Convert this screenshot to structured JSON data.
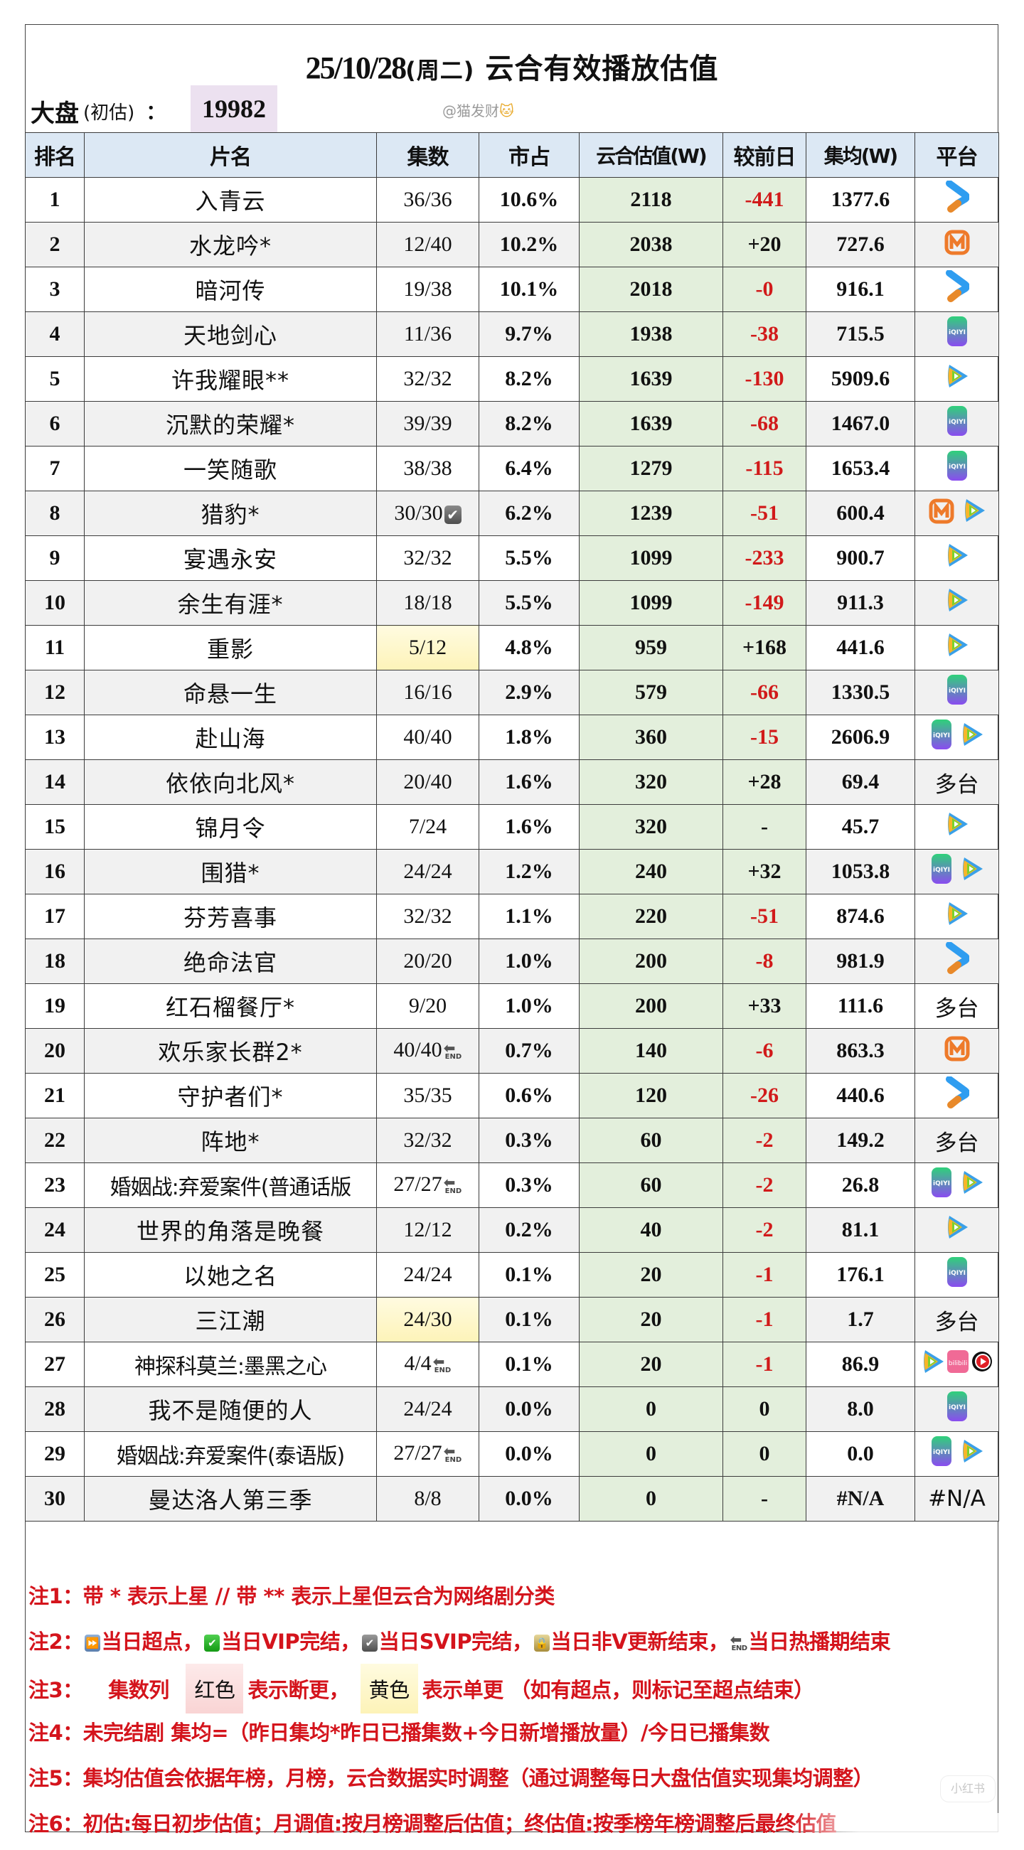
{
  "header": {
    "title_date": "25/10/28",
    "title_weekday": "(周二)",
    "title_text": "云合有效播放估值",
    "market_label": "大盘",
    "market_sub": "(初估)",
    "market_colon": "：",
    "market_value": "19982",
    "author": "@猫发财",
    "author_emoji": "🐱"
  },
  "colors": {
    "header_bg": "#dce8f4",
    "green_col": "#e3efdc",
    "even_row": "#f1f1f1",
    "negative": "#d11a1a",
    "note_red": "#d4141c",
    "market_box": "#ece1f0",
    "yellow": "#fdf3b8"
  },
  "table": {
    "columns": [
      "排名",
      "片名",
      "集数",
      "市占",
      "云合估值(W)",
      "较前日",
      "集均(W)",
      "平台"
    ],
    "rows": [
      {
        "rank": "1",
        "name": "入青云",
        "eps": "36/36",
        "share": "10.6%",
        "est": "2118",
        "chg": "-441",
        "avg": "1377.6",
        "platforms": [
          "youku"
        ]
      },
      {
        "rank": "2",
        "name": "水龙吟*",
        "eps": "12/40",
        "share": "10.2%",
        "est": "2038",
        "chg": "+20",
        "avg": "727.6",
        "platforms": [
          "mango"
        ]
      },
      {
        "rank": "3",
        "name": "暗河传",
        "eps": "19/38",
        "share": "10.1%",
        "est": "2018",
        "chg": "-0",
        "avg": "916.1",
        "platforms": [
          "youku"
        ]
      },
      {
        "rank": "4",
        "name": "天地剑心",
        "eps": "11/36",
        "share": "9.7%",
        "est": "1938",
        "chg": "-38",
        "avg": "715.5",
        "platforms": [
          "iqiyi"
        ]
      },
      {
        "rank": "5",
        "name": "许我耀眼**",
        "eps": "32/32",
        "share": "8.2%",
        "est": "1639",
        "chg": "-130",
        "avg": "5909.6",
        "platforms": [
          "tencent"
        ]
      },
      {
        "rank": "6",
        "name": "沉默的荣耀*",
        "eps": "39/39",
        "share": "8.2%",
        "est": "1639",
        "chg": "-68",
        "avg": "1467.0",
        "platforms": [
          "iqiyi"
        ]
      },
      {
        "rank": "7",
        "name": "一笑随歌",
        "eps": "38/38",
        "share": "6.4%",
        "est": "1279",
        "chg": "-115",
        "avg": "1653.4",
        "platforms": [
          "iqiyi"
        ]
      },
      {
        "rank": "8",
        "name": "猎豹*",
        "eps": "30/30",
        "eps_mark": "svip-check",
        "share": "6.2%",
        "est": "1239",
        "chg": "-51",
        "avg": "600.4",
        "platforms": [
          "mango",
          "tencent"
        ]
      },
      {
        "rank": "9",
        "name": "宴遇永安",
        "eps": "32/32",
        "share": "5.5%",
        "est": "1099",
        "chg": "-233",
        "avg": "900.7",
        "platforms": [
          "tencent"
        ]
      },
      {
        "rank": "10",
        "name": "余生有涯*",
        "eps": "18/18",
        "share": "5.5%",
        "est": "1099",
        "chg": "-149",
        "avg": "911.3",
        "platforms": [
          "tencent"
        ]
      },
      {
        "rank": "11",
        "name": "重影",
        "eps": "5/12",
        "eps_bg": "yellow",
        "share": "4.8%",
        "est": "959",
        "chg": "+168",
        "avg": "441.6",
        "platforms": [
          "tencent"
        ]
      },
      {
        "rank": "12",
        "name": "命悬一生",
        "eps": "16/16",
        "share": "2.9%",
        "est": "579",
        "chg": "-66",
        "avg": "1330.5",
        "platforms": [
          "iqiyi"
        ]
      },
      {
        "rank": "13",
        "name": "赴山海",
        "eps": "40/40",
        "share": "1.8%",
        "est": "360",
        "chg": "-15",
        "avg": "2606.9",
        "platforms": [
          "iqiyi",
          "tencent"
        ]
      },
      {
        "rank": "14",
        "name": "依依向北风*",
        "eps": "20/40",
        "share": "1.6%",
        "est": "320",
        "chg": "+28",
        "avg": "69.4",
        "platform_text": "多台"
      },
      {
        "rank": "15",
        "name": "锦月令",
        "eps": "7/24",
        "share": "1.6%",
        "est": "320",
        "chg": "-",
        "avg": "45.7",
        "platforms": [
          "tencent"
        ]
      },
      {
        "rank": "16",
        "name": "围猎*",
        "eps": "24/24",
        "share": "1.2%",
        "est": "240",
        "chg": "+32",
        "avg": "1053.8",
        "platforms": [
          "iqiyi",
          "tencent"
        ]
      },
      {
        "rank": "17",
        "name": "芬芳喜事",
        "eps": "32/32",
        "share": "1.1%",
        "est": "220",
        "chg": "-51",
        "avg": "874.6",
        "platforms": [
          "tencent"
        ]
      },
      {
        "rank": "18",
        "name": "绝命法官",
        "eps": "20/20",
        "share": "1.0%",
        "est": "200",
        "chg": "-8",
        "avg": "981.9",
        "platforms": [
          "youku"
        ]
      },
      {
        "rank": "19",
        "name": "红石榴餐厅*",
        "eps": "9/20",
        "share": "1.0%",
        "est": "200",
        "chg": "+33",
        "avg": "111.6",
        "platform_text": "多台"
      },
      {
        "rank": "20",
        "name": "欢乐家长群2*",
        "eps": "40/40",
        "eps_mark": "end",
        "share": "0.7%",
        "est": "140",
        "chg": "-6",
        "avg": "863.3",
        "platforms": [
          "mango"
        ]
      },
      {
        "rank": "21",
        "name": "守护者们*",
        "eps": "35/35",
        "share": "0.6%",
        "est": "120",
        "chg": "-26",
        "avg": "440.6",
        "platforms": [
          "youku"
        ]
      },
      {
        "rank": "22",
        "name": "阵地*",
        "eps": "32/32",
        "share": "0.3%",
        "est": "60",
        "chg": "-2",
        "avg": "149.2",
        "platform_text": "多台"
      },
      {
        "rank": "23",
        "name": "婚姻战:弃爱案件(普通话版",
        "eps": "27/27",
        "eps_mark": "end",
        "share": "0.3%",
        "est": "60",
        "chg": "-2",
        "avg": "26.8",
        "platforms": [
          "iqiyi",
          "tencent"
        ]
      },
      {
        "rank": "24",
        "name": "世界的角落是晚餐",
        "eps": "12/12",
        "share": "0.2%",
        "est": "40",
        "chg": "-2",
        "avg": "81.1",
        "platforms": [
          "tencent"
        ]
      },
      {
        "rank": "25",
        "name": "以她之名",
        "eps": "24/24",
        "share": "0.1%",
        "est": "20",
        "chg": "-1",
        "avg": "176.1",
        "platforms": [
          "iqiyi"
        ]
      },
      {
        "rank": "26",
        "name": "三江潮",
        "eps": "24/30",
        "eps_bg": "yellow",
        "share": "0.1%",
        "est": "20",
        "chg": "-1",
        "avg": "1.7",
        "platform_text": "多台"
      },
      {
        "rank": "27",
        "name": "神探科莫兰:墨黑之心",
        "eps": "4/4",
        "eps_mark": "end",
        "share": "0.1%",
        "est": "20",
        "chg": "-1",
        "avg": "86.9",
        "platforms": [
          "tencent",
          "bilibili",
          "redplay"
        ]
      },
      {
        "rank": "28",
        "name": "我不是随便的人",
        "eps": "24/24",
        "share": "0.0%",
        "est": "0",
        "chg": "0",
        "avg": "8.0",
        "platforms": [
          "iqiyi"
        ]
      },
      {
        "rank": "29",
        "name": "婚姻战:弃爱案件(泰语版)",
        "eps": "27/27",
        "eps_mark": "end",
        "share": "0.0%",
        "est": "0",
        "chg": "0",
        "avg": "0.0",
        "platforms": [
          "iqiyi",
          "tencent"
        ]
      },
      {
        "rank": "30",
        "name": "曼达洛人第三季",
        "eps": "8/8",
        "share": "0.0%",
        "est": "0",
        "chg": "-",
        "avg": "#N/A",
        "platform_text": "#N/A"
      }
    ]
  },
  "icons": {
    "end_label": "END",
    "end_arrow": "⬅",
    "check": "✔"
  },
  "notes": {
    "n1": "注1：带 * 表示上星 // 带 ** 表示上星但云合为网络剧分类",
    "n2": {
      "prefix": "注2：",
      "items": [
        "当日超点，",
        "当日VIP完结，",
        "当日SVIP完结，",
        "当日非V更新结束，",
        "当日热播期结束"
      ]
    },
    "n3": {
      "prefix": "注3：",
      "col": "集数列",
      "red_swatch": "红色",
      "red_text": "表示断更，",
      "yellow_swatch": "黄色",
      "yellow_text": "表示单更 （如有超点，则标记至超点结束）"
    },
    "n4": "注4：未完结剧 集均=（昨日集均*昨日已播集数+今日新增播放量）/今日已播集数",
    "n5": "注5：集均估值会依据年榜，月榜，云合数据实时调整（通过调整每日大盘估值实现集均调整）",
    "n6": "注6：初估:每日初步估值；月调值:按月榜调整后估值；终估值:按季榜年榜调整后最终估值"
  },
  "watermarks": {
    "xhs": "小红书"
  }
}
